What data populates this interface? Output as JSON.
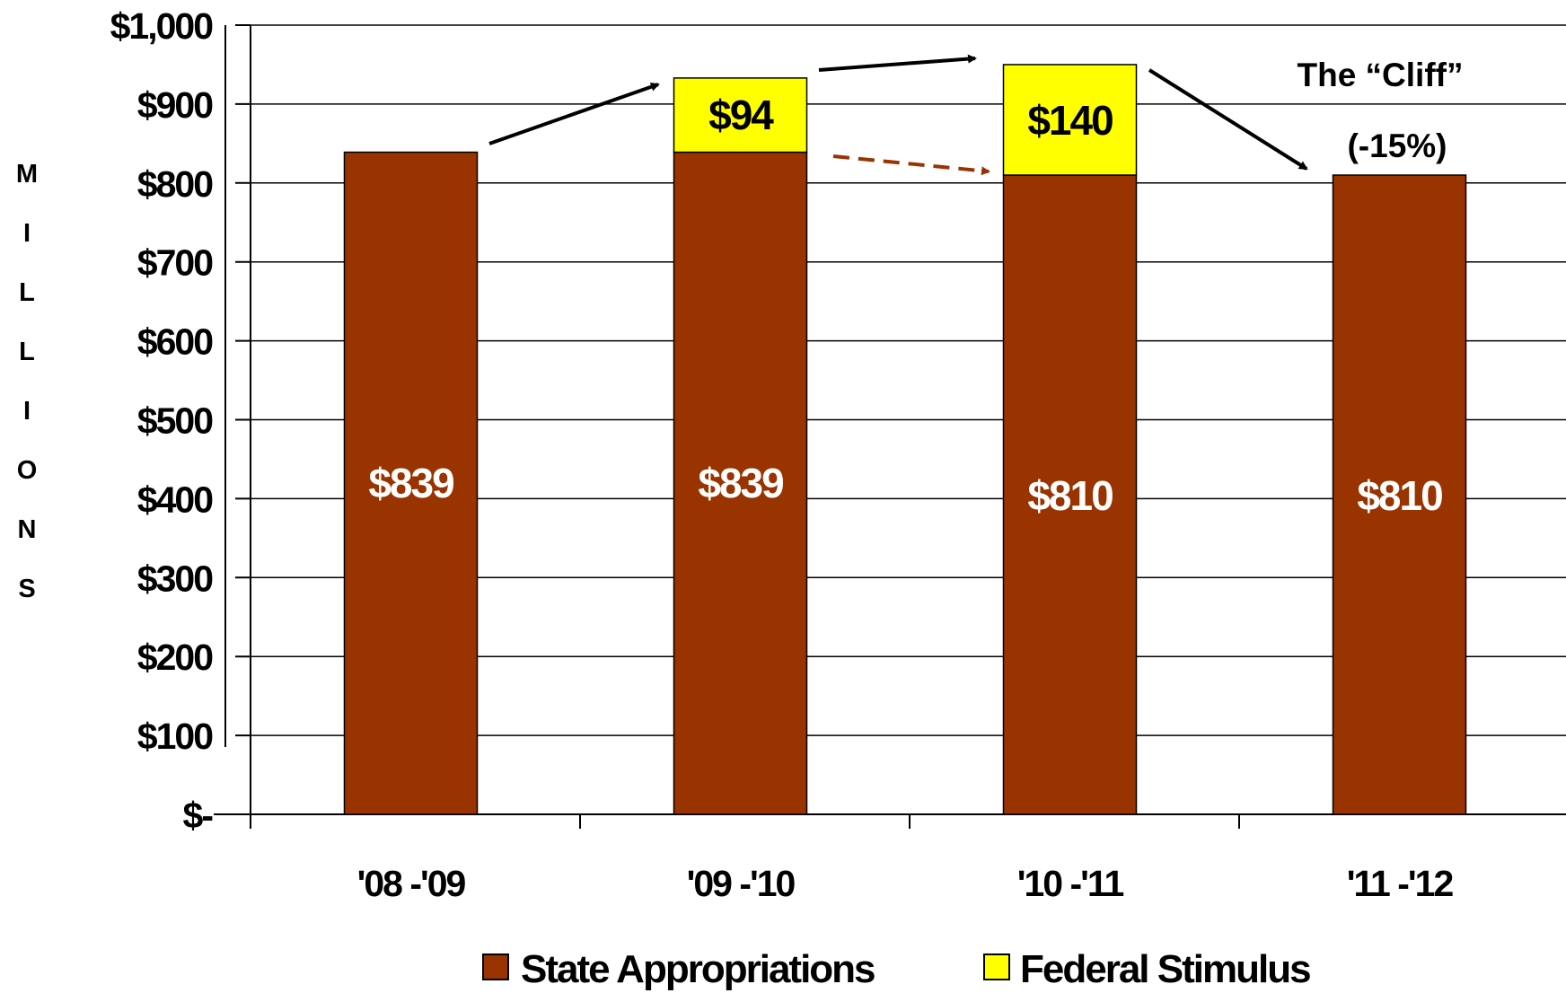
{
  "chart_data": {
    "type": "bar",
    "stacked": true,
    "categories": [
      "'08 -'09",
      "'09 -'10",
      "'10 -'11",
      "'11 -'12"
    ],
    "series": [
      {
        "name": "State Appropriations",
        "values": [
          839,
          839,
          810,
          810
        ],
        "color": "#993300",
        "labels": [
          "$839",
          "$839",
          "$810",
          "$810"
        ]
      },
      {
        "name": "Federal Stimulus",
        "values": [
          0,
          94,
          140,
          0
        ],
        "color": "#ffff00",
        "labels": [
          "",
          "$94",
          "$140",
          ""
        ]
      }
    ],
    "ylabel": "MILLIONS",
    "ylim": [
      0,
      1000
    ],
    "yticks": [
      0,
      100,
      200,
      300,
      400,
      500,
      600,
      700,
      800,
      900,
      1000
    ],
    "ytick_labels": [
      "$-",
      "$100",
      "$200",
      "$300",
      "$400",
      "$500",
      "$600",
      "$700",
      "$800",
      "$900",
      "$1,000"
    ],
    "grid": true,
    "legend_position": "bottom",
    "annotations": [
      {
        "text": "The “Cliff”"
      },
      {
        "text": "(-15%)"
      }
    ]
  }
}
